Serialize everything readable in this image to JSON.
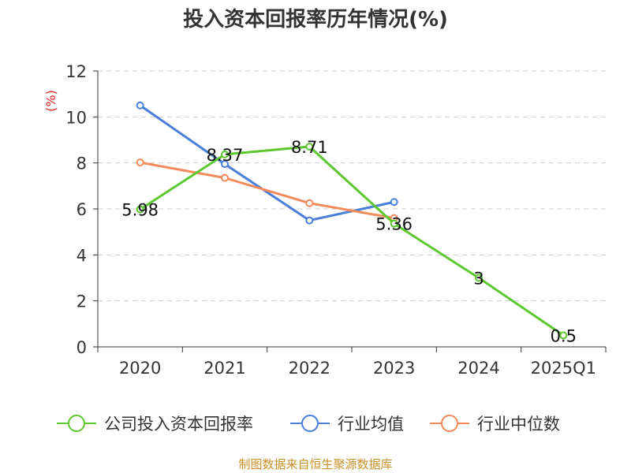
{
  "chart_data": {
    "type": "line",
    "title": "投入资本回报率历年情况(%)",
    "ylabel": "(%)",
    "xlabel": "",
    "ylim": [
      0,
      12
    ],
    "yticks": [
      0,
      2,
      4,
      6,
      8,
      10,
      12
    ],
    "categories": [
      "2020",
      "2021",
      "2022",
      "2023",
      "2024",
      "2025Q1"
    ],
    "grid": true,
    "legend_position": "bottom",
    "series": [
      {
        "name": "公司投入资本回报率",
        "color": "#5cc72e",
        "values": [
          5.98,
          8.37,
          8.71,
          5.36,
          3,
          0.5
        ],
        "labels": [
          "5.98",
          "8.37",
          "8.71",
          "5.36",
          "3",
          "0.5"
        ]
      },
      {
        "name": "行业均值",
        "color": "#4a7fd9",
        "values": [
          10.5,
          7.95,
          5.5,
          6.3,
          null,
          null
        ]
      },
      {
        "name": "行业中位数",
        "color": "#f48a5a",
        "values": [
          8.02,
          7.35,
          6.25,
          5.6,
          null,
          null
        ]
      }
    ]
  },
  "source": "制图数据来自恒生聚源数据库"
}
